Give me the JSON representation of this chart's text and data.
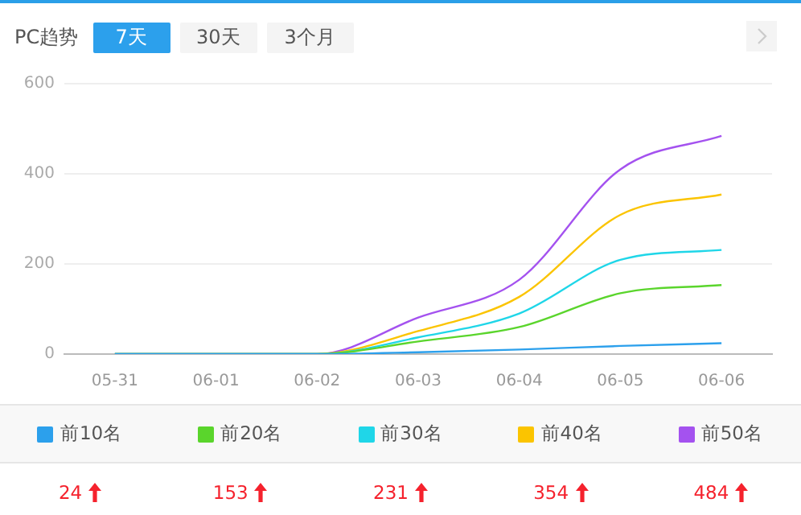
{
  "chart_data": {
    "type": "line",
    "title": "PC趋势",
    "categories": [
      "05-31",
      "06-01",
      "06-02",
      "06-03",
      "06-04",
      "06-05",
      "06-06"
    ],
    "series": [
      {
        "name": "前10名",
        "color": "#2ca0ec",
        "values": [
          0,
          0,
          0,
          4,
          10,
          18,
          24
        ]
      },
      {
        "name": "前20名",
        "color": "#5ad52c",
        "values": [
          0,
          0,
          0,
          28,
          60,
          135,
          153
        ]
      },
      {
        "name": "前30名",
        "color": "#1fd6e8",
        "values": [
          0,
          0,
          0,
          37,
          90,
          209,
          231
        ]
      },
      {
        "name": "前40名",
        "color": "#fbc400",
        "values": [
          0,
          0,
          0,
          51,
          127,
          309,
          354
        ]
      },
      {
        "name": "前50名",
        "color": "#a452ef",
        "values": [
          0,
          0,
          0,
          81,
          165,
          410,
          484
        ]
      }
    ],
    "ylim": [
      0,
      600
    ],
    "yticks": [
      0,
      200,
      400,
      600
    ],
    "grid": "y",
    "legend": "bottom",
    "marker": "none",
    "line_style": "solid",
    "annotations": [
      "7天",
      "30天",
      "3个月",
      "24",
      "153",
      "231",
      "354",
      "484"
    ]
  }
}
